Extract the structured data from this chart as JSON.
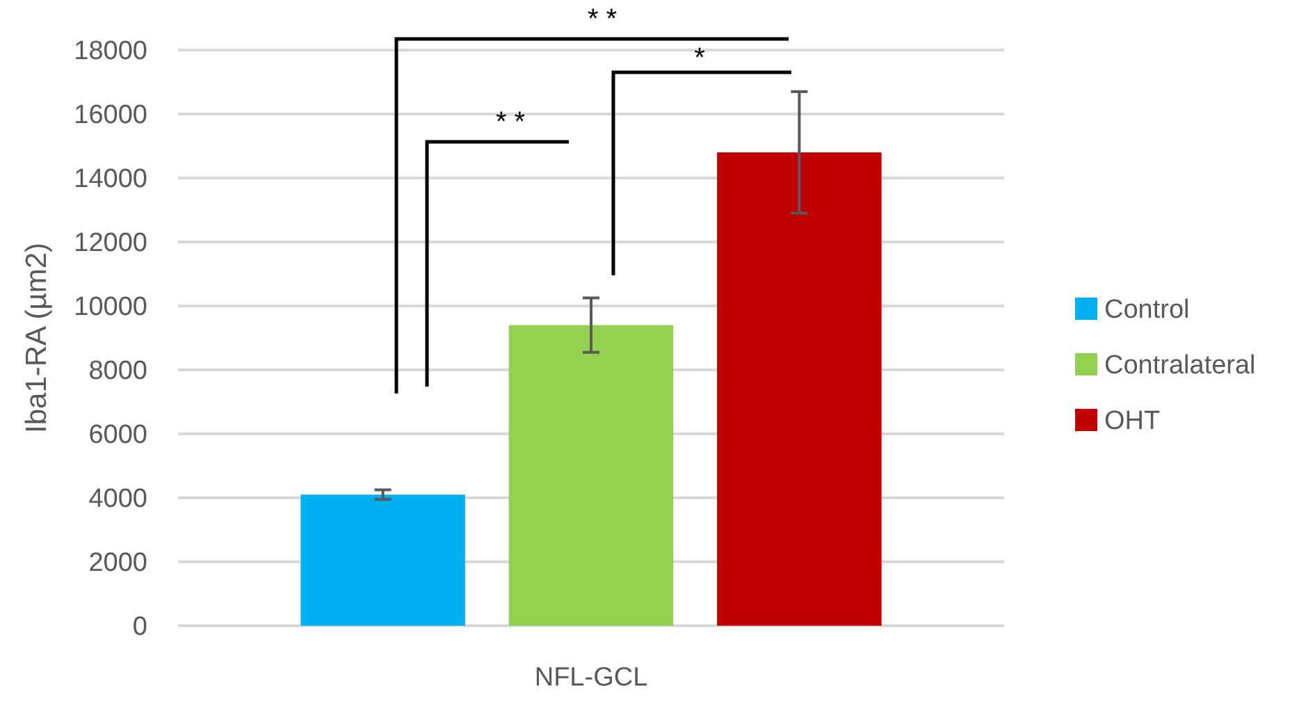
{
  "chart_data": {
    "type": "bar",
    "ylabel": "Iba1-RA (µm2)",
    "categories": [
      "NFL-GCL"
    ],
    "series": [
      {
        "name": "Control",
        "color": "#00b0f0",
        "values": [
          4100
        ],
        "errors": [
          150
        ]
      },
      {
        "name": "Contralateral",
        "color": "#92d050",
        "values": [
          9400
        ],
        "errors": [
          850
        ]
      },
      {
        "name": "OHT",
        "color": "#c00000",
        "values": [
          14800
        ],
        "errors": [
          1900
        ]
      }
    ],
    "ylim": [
      0,
      18000
    ],
    "yticks": [
      0,
      2000,
      4000,
      6000,
      8000,
      10000,
      12000,
      14000,
      16000,
      18000
    ],
    "grid": "y",
    "legend": "right",
    "annotations": [
      "* *",
      "* *",
      "*"
    ]
  }
}
